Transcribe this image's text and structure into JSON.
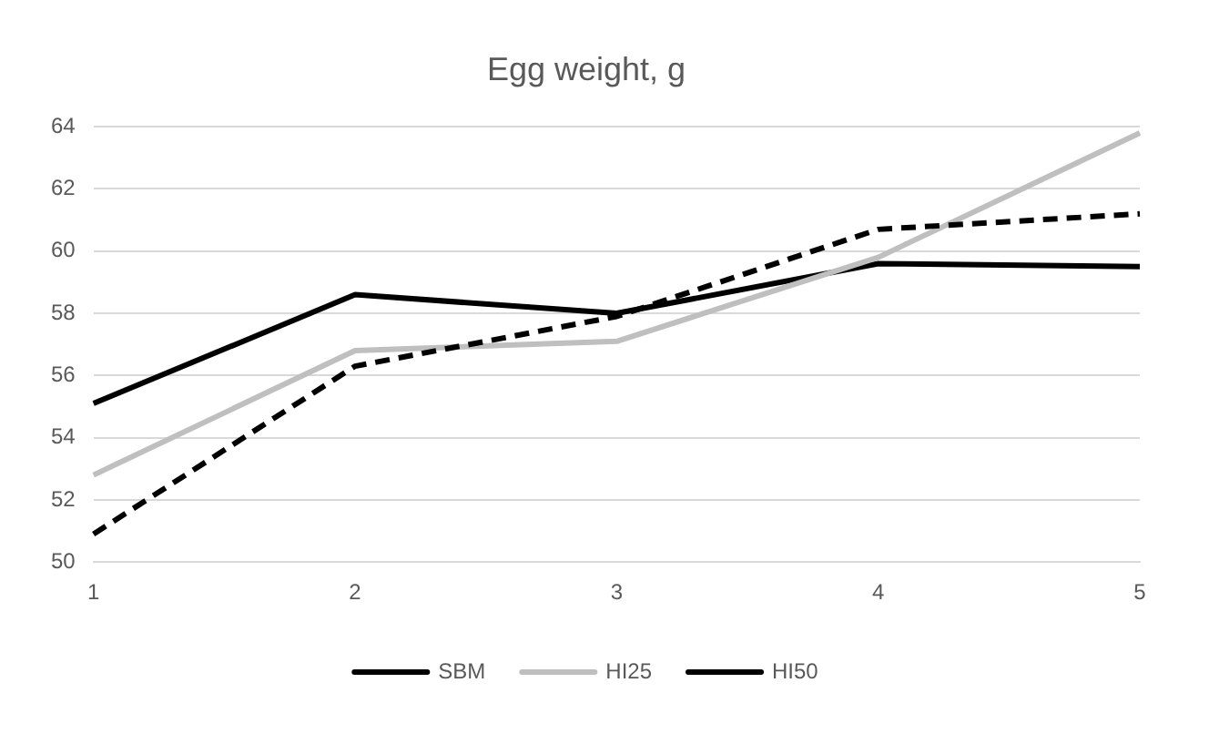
{
  "chart_data": {
    "type": "line",
    "title": "Egg weight, g",
    "categories": [
      "1",
      "2",
      "3",
      "4",
      "5"
    ],
    "series": [
      {
        "name": "SBM",
        "color": "#000000",
        "line_style": "dashed",
        "values": [
          50.9,
          56.3,
          57.9,
          60.7,
          61.2
        ]
      },
      {
        "name": "HI25",
        "color": "#bfbfbf",
        "line_style": "solid",
        "values": [
          52.8,
          56.8,
          57.1,
          59.8,
          63.8
        ]
      },
      {
        "name": "HI50",
        "color": "#000000",
        "line_style": "solid",
        "values": [
          55.1,
          58.6,
          58.0,
          59.6,
          59.5
        ]
      }
    ],
    "ylim": [
      50,
      64
    ],
    "yticks": [
      50,
      52,
      54,
      56,
      58,
      60,
      62,
      64
    ],
    "grid": "y",
    "legend": "bottom",
    "marker": "none"
  }
}
